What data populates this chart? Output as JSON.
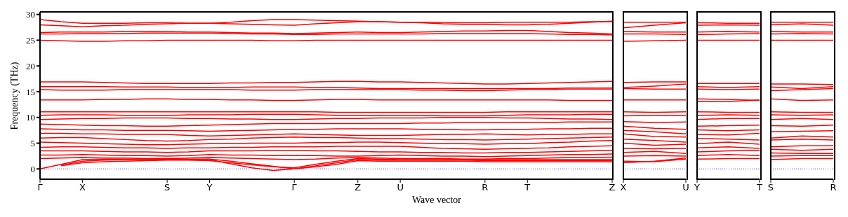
{
  "chart_data": [
    {
      "type": "line",
      "xlabel": "Wave vector",
      "ylabel": "Frequency (THz)",
      "ylim": [
        -2,
        30.5
      ],
      "yticks": [
        0,
        5,
        10,
        15,
        20,
        25,
        30
      ],
      "ref_lines": [
        {
          "axis": "y",
          "value": 0,
          "color": "#0000ff",
          "line_style": "dotted"
        }
      ],
      "categories": [
        "Γ",
        null,
        "X",
        null,
        null,
        null,
        "S",
        null,
        "Y",
        null,
        null,
        null,
        "Γ",
        null,
        null,
        "Z",
        null,
        "U",
        null,
        null,
        null,
        "R",
        null,
        "T",
        null,
        null,
        null,
        "Z"
      ],
      "series": [
        {
          "color": "#ff0000",
          "values": [
            29.0,
            28.6,
            28.3,
            28.3,
            28.3,
            28.4,
            28.4,
            28.3,
            28.3,
            28.5,
            28.8,
            29.0,
            29.0,
            28.9,
            28.8,
            28.7,
            28.6,
            28.5,
            28.4,
            28.2,
            28.1,
            28.1,
            28.0,
            28.0,
            28.1,
            28.3,
            28.5,
            28.7
          ]
        },
        {
          "color": "#ff0000",
          "values": [
            28.0,
            27.8,
            27.6,
            27.8,
            27.9,
            28.1,
            28.2,
            28.3,
            28.3,
            28.2,
            28.1,
            28.0,
            27.9,
            28.2,
            28.4,
            28.6,
            28.6,
            28.5,
            28.5,
            28.4,
            28.4,
            28.4,
            28.5,
            28.5,
            28.5,
            28.5,
            28.6,
            28.6
          ]
        },
        {
          "color": "#ff0000",
          "values": [
            26.5,
            26.6,
            26.6,
            26.6,
            26.7,
            26.7,
            26.7,
            26.6,
            26.6,
            26.5,
            26.4,
            26.4,
            26.3,
            26.4,
            26.5,
            26.6,
            26.5,
            26.5,
            26.6,
            26.7,
            26.8,
            26.8,
            26.9,
            26.9,
            26.7,
            26.5,
            26.4,
            26.2
          ]
        },
        {
          "color": "#ff0000",
          "values": [
            26.2,
            26.2,
            26.3,
            26.3,
            26.3,
            26.4,
            26.4,
            26.4,
            26.4,
            26.3,
            26.2,
            26.2,
            26.1,
            26.1,
            26.2,
            26.2,
            26.2,
            26.2,
            26.2,
            26.3,
            26.3,
            26.3,
            26.3,
            26.3,
            26.2,
            26.1,
            26.1,
            26.0
          ]
        },
        {
          "color": "#ff0000",
          "values": [
            25.0,
            24.9,
            24.8,
            24.8,
            24.9,
            24.9,
            25.0,
            25.0,
            25.0,
            25.0,
            25.0,
            24.9,
            24.9,
            25.0,
            25.0,
            25.0,
            25.0,
            25.0,
            25.0,
            25.0,
            25.0,
            25.0,
            25.0,
            25.0,
            25.0,
            25.0,
            25.0,
            25.0
          ]
        },
        {
          "color": "#ff0000",
          "values": [
            16.9,
            16.9,
            16.9,
            16.8,
            16.7,
            16.6,
            16.6,
            16.6,
            16.6,
            16.7,
            16.7,
            16.8,
            16.8,
            16.9,
            17.0,
            17.0,
            16.9,
            16.9,
            16.8,
            16.7,
            16.6,
            16.5,
            16.5,
            16.6,
            16.7,
            16.8,
            16.9,
            17.0
          ]
        },
        {
          "color": "#ff0000",
          "values": [
            16.0,
            16.0,
            16.0,
            16.0,
            15.9,
            15.9,
            15.9,
            15.8,
            15.8,
            15.8,
            15.9,
            15.9,
            15.9,
            15.8,
            15.8,
            15.7,
            15.6,
            15.6,
            15.6,
            15.6,
            15.6,
            15.6,
            15.6,
            15.6,
            15.6,
            15.7,
            15.7,
            15.7
          ]
        },
        {
          "color": "#ff0000",
          "values": [
            15.4,
            15.3,
            15.3,
            15.3,
            15.4,
            15.4,
            15.4,
            15.4,
            15.4,
            15.4,
            15.3,
            15.3,
            15.3,
            15.4,
            15.4,
            15.4,
            15.4,
            15.4,
            15.3,
            15.3,
            15.2,
            15.2,
            15.3,
            15.4,
            15.4,
            15.5,
            15.5,
            15.5
          ]
        },
        {
          "color": "#ff0000",
          "values": [
            13.4,
            13.4,
            13.4,
            13.5,
            13.5,
            13.6,
            13.6,
            13.5,
            13.5,
            13.4,
            13.4,
            13.3,
            13.3,
            13.4,
            13.5,
            13.5,
            13.4,
            13.4,
            13.4,
            13.4,
            13.4,
            13.4,
            13.4,
            13.4,
            13.4,
            13.3,
            13.3,
            13.3
          ]
        },
        {
          "color": "#ff0000",
          "values": [
            11.1,
            11.1,
            11.1,
            11.1,
            11.1,
            11.1,
            11.1,
            11.1,
            11.1,
            11.1,
            11.1,
            11.1,
            11.1,
            11.1,
            11.0,
            11.0,
            11.0,
            11.0,
            11.0,
            11.0,
            11.0,
            11.0,
            11.1,
            11.1,
            11.1,
            11.1,
            11.1,
            11.1
          ]
        },
        {
          "color": "#ff0000",
          "values": [
            10.4,
            10.5,
            10.5,
            10.5,
            10.4,
            10.4,
            10.4,
            10.5,
            10.5,
            10.5,
            10.6,
            10.6,
            10.6,
            10.5,
            10.4,
            10.4,
            10.4,
            10.4,
            10.4,
            10.3,
            10.3,
            10.3,
            10.4,
            10.5,
            10.5,
            10.5,
            10.6,
            10.6
          ]
        },
        {
          "color": "#ff0000",
          "values": [
            9.6,
            9.7,
            9.8,
            9.8,
            9.9,
            9.9,
            9.9,
            9.8,
            9.8,
            9.7,
            9.7,
            9.6,
            9.6,
            9.7,
            9.8,
            9.8,
            9.9,
            9.9,
            9.9,
            10.0,
            10.0,
            10.0,
            9.9,
            9.9,
            9.8,
            9.7,
            9.7,
            9.6
          ]
        },
        {
          "color": "#ff0000",
          "values": [
            8.7,
            8.6,
            8.5,
            8.4,
            8.4,
            8.3,
            8.3,
            8.4,
            8.5,
            8.6,
            8.7,
            8.8,
            8.8,
            8.8,
            8.8,
            8.8,
            8.8,
            8.8,
            8.9,
            8.9,
            9.0,
            9.0,
            9.0,
            9.0,
            9.0,
            9.1,
            9.1,
            9.1
          ]
        },
        {
          "color": "#ff0000",
          "values": [
            7.8,
            7.7,
            7.6,
            7.6,
            7.5,
            7.5,
            7.5,
            7.4,
            7.3,
            7.4,
            7.5,
            7.6,
            7.7,
            7.7,
            7.8,
            7.8,
            7.8,
            7.8,
            7.7,
            7.7,
            7.6,
            7.6,
            7.7,
            7.7,
            7.8,
            7.8,
            7.9,
            7.9
          ]
        },
        {
          "color": "#ff0000",
          "values": [
            6.9,
            6.9,
            6.8,
            6.8,
            6.7,
            6.7,
            6.7,
            6.5,
            6.4,
            6.5,
            6.6,
            6.7,
            6.8,
            6.7,
            6.6,
            6.5,
            6.5,
            6.5,
            6.6,
            6.7,
            6.7,
            6.8,
            6.7,
            6.6,
            6.7,
            6.7,
            6.8,
            6.8
          ]
        },
        {
          "color": "#ff0000",
          "values": [
            6.0,
            6.1,
            6.1,
            5.9,
            5.7,
            5.5,
            5.4,
            5.5,
            5.7,
            5.8,
            6.0,
            6.1,
            6.2,
            6.1,
            6.1,
            6.0,
            5.9,
            5.9,
            5.8,
            5.7,
            5.7,
            5.6,
            5.7,
            5.8,
            5.9,
            6.0,
            6.1,
            6.2
          ]
        },
        {
          "color": "#ff0000",
          "values": [
            5.2,
            5.1,
            5.0,
            4.9,
            4.8,
            4.7,
            4.7,
            4.8,
            4.9,
            4.9,
            5.0,
            5.0,
            5.0,
            5.1,
            5.1,
            5.2,
            5.2,
            5.1,
            5.0,
            4.9,
            4.9,
            4.8,
            4.9,
            4.9,
            5.1,
            5.2,
            5.4,
            5.5
          ]
        },
        {
          "color": "#ff0000",
          "values": [
            4.2,
            4.3,
            4.3,
            4.2,
            4.1,
            4.1,
            4.0,
            4.1,
            4.1,
            4.2,
            4.2,
            4.3,
            4.3,
            4.3,
            4.4,
            4.4,
            4.4,
            4.4,
            4.2,
            4.0,
            3.9,
            3.8,
            3.9,
            4.0,
            4.1,
            4.3,
            4.4,
            4.5
          ]
        },
        {
          "color": "#ff0000",
          "values": [
            3.5,
            3.5,
            3.5,
            3.4,
            3.3,
            3.3,
            3.2,
            3.3,
            3.5,
            3.5,
            3.5,
            3.6,
            3.6,
            3.5,
            3.5,
            3.4,
            3.3,
            3.3,
            3.2,
            3.2,
            3.1,
            3.1,
            3.2,
            3.2,
            3.3,
            3.4,
            3.5,
            3.6
          ]
        },
        {
          "color": "#ff0000",
          "values": [
            2.7,
            2.7,
            2.8,
            2.7,
            2.6,
            2.6,
            2.5,
            2.6,
            2.8,
            2.7,
            2.7,
            2.6,
            2.6,
            2.6,
            2.5,
            2.5,
            2.6,
            2.7,
            2.6,
            2.5,
            2.5,
            2.4,
            2.5,
            2.6,
            2.7,
            2.8,
            2.8,
            2.9
          ]
        },
        {
          "color": "#ff0000",
          "values": [
            2.0,
            2.1,
            2.2,
            2.1,
            2.1,
            2.0,
            2.0,
            2.1,
            2.2,
            2.1,
            2.0,
            1.9,
            1.8,
            1.9,
            2.1,
            2.2,
            2.1,
            2.0,
            2.0,
            2.0,
            1.9,
            1.9,
            2.0,
            2.0,
            2.1,
            2.2,
            2.2,
            2.3
          ]
        },
        {
          "color": "#ff0000",
          "values": [
            0,
            0.9,
            1.8,
            1.9,
            1.9,
            1.9,
            1.9,
            1.9,
            1.9,
            1.5,
            1.0,
            0.5,
            0,
            0.6,
            1.2,
            1.8,
            1.7,
            1.7,
            1.7,
            1.7,
            1.7,
            1.6,
            1.6,
            1.6,
            1.6,
            1.6,
            1.6,
            1.6
          ]
        },
        {
          "color": "#ff0000",
          "values": [
            null,
            0.6,
            1.2,
            1.4,
            1.5,
            1.6,
            1.7,
            1.7,
            1.6,
            1.2,
            0.8,
            0.4,
            0.2,
            0.9,
            1.5,
            2.0,
            1.9,
            1.8,
            1.8,
            1.8,
            1.8,
            1.8,
            1.8,
            1.8,
            1.8,
            1.8,
            1.8,
            1.8
          ]
        },
        {
          "color": "#ff0000",
          "values": [
            null,
            0.7,
            1.5,
            1.7,
            1.8,
            1.8,
            1.8,
            1.8,
            1.8,
            1.0,
            0.2,
            -0.3,
            0,
            0.4,
            0.9,
            1.6,
            1.5,
            1.5,
            1.5,
            1.5,
            1.5,
            1.4,
            1.4,
            1.4,
            1.4,
            1.4,
            1.4,
            1.4
          ]
        }
      ]
    },
    {
      "type": "line",
      "tick_labels": "x",
      "ylim": [
        -2,
        30.5
      ],
      "yticks": [
        0,
        5,
        10,
        15,
        20,
        25,
        30
      ],
      "ref_lines": [
        {
          "axis": "y",
          "value": 0,
          "color": "#0000ff",
          "line_style": "dotted"
        }
      ],
      "categories": [
        "X",
        null,
        "U"
      ],
      "series": [
        {
          "color": "#ff0000",
          "values": [
            28.5,
            28.5,
            28.5
          ]
        },
        {
          "color": "#ff0000",
          "values": [
            27.4,
            27.9,
            28.4
          ]
        },
        {
          "color": "#ff0000",
          "values": [
            26.7,
            26.6,
            26.6
          ]
        },
        {
          "color": "#ff0000",
          "values": [
            26.2,
            26.2,
            26.1
          ]
        },
        {
          "color": "#ff0000",
          "values": [
            24.8,
            24.9,
            25.0
          ]
        },
        {
          "color": "#ff0000",
          "values": [
            16.8,
            16.9,
            16.9
          ]
        },
        {
          "color": "#ff0000",
          "values": [
            15.8,
            16.1,
            16.5
          ]
        },
        {
          "color": "#ff0000",
          "values": [
            15.6,
            15.5,
            15.5
          ]
        },
        {
          "color": "#ff0000",
          "values": [
            13.4,
            13.4,
            13.4
          ]
        },
        {
          "color": "#ff0000",
          "values": [
            11.1,
            11.0,
            11.1
          ]
        },
        {
          "color": "#ff0000",
          "values": [
            10.3,
            10.4,
            10.4
          ]
        },
        {
          "color": "#ff0000",
          "values": [
            9.2,
            9.0,
            9.1
          ]
        },
        {
          "color": "#ff0000",
          "values": [
            8.3,
            7.9,
            7.7
          ]
        },
        {
          "color": "#ff0000",
          "values": [
            7.5,
            7.2,
            6.8
          ]
        },
        {
          "color": "#ff0000",
          "values": [
            6.8,
            6.3,
            6.2
          ]
        },
        {
          "color": "#ff0000",
          "values": [
            5.8,
            5.5,
            5.2
          ]
        },
        {
          "color": "#ff0000",
          "values": [
            5.0,
            4.6,
            4.8
          ]
        },
        {
          "color": "#ff0000",
          "values": [
            4.0,
            3.9,
            4.0
          ]
        },
        {
          "color": "#ff0000",
          "values": [
            3.2,
            3.4,
            3.0
          ]
        },
        {
          "color": "#ff0000",
          "values": [
            2.5,
            2.6,
            2.5
          ]
        },
        {
          "color": "#ff0000",
          "values": [
            1.5,
            1.4,
            1.9
          ]
        },
        {
          "color": "#ff0000",
          "values": [
            1.2,
            1.5,
            2.1
          ]
        }
      ]
    },
    {
      "type": "line",
      "tick_labels": "x",
      "ylim": [
        -2,
        30.5
      ],
      "yticks": [
        0,
        5,
        10,
        15,
        20,
        25,
        30
      ],
      "ref_lines": [
        {
          "axis": "y",
          "value": 0,
          "color": "#0000ff",
          "line_style": "dotted"
        }
      ],
      "categories": [
        "Y",
        null,
        "T"
      ],
      "series": [
        {
          "color": "#ff0000",
          "values": [
            28.4,
            28.3,
            28.3
          ]
        },
        {
          "color": "#ff0000",
          "values": [
            27.9,
            28.0,
            27.9
          ]
        },
        {
          "color": "#ff0000",
          "values": [
            26.6,
            26.7,
            26.6
          ]
        },
        {
          "color": "#ff0000",
          "values": [
            26.1,
            26.2,
            26.3
          ]
        },
        {
          "color": "#ff0000",
          "values": [
            25.0,
            25.0,
            25.0
          ]
        },
        {
          "color": "#ff0000",
          "values": [
            16.6,
            16.6,
            16.6
          ]
        },
        {
          "color": "#ff0000",
          "values": [
            16.0,
            15.8,
            16.0
          ]
        },
        {
          "color": "#ff0000",
          "values": [
            15.5,
            15.4,
            15.5
          ]
        },
        {
          "color": "#ff0000",
          "values": [
            13.6,
            13.5,
            13.3
          ]
        },
        {
          "color": "#ff0000",
          "values": [
            13.1,
            13.1,
            13.4
          ]
        },
        {
          "color": "#ff0000",
          "values": [
            11.1,
            11.0,
            11.0
          ]
        },
        {
          "color": "#ff0000",
          "values": [
            10.4,
            10.5,
            10.4
          ]
        },
        {
          "color": "#ff0000",
          "values": [
            9.6,
            9.8,
            9.8
          ]
        },
        {
          "color": "#ff0000",
          "values": [
            8.3,
            8.4,
            8.5
          ]
        },
        {
          "color": "#ff0000",
          "values": [
            7.6,
            7.4,
            7.6
          ]
        },
        {
          "color": "#ff0000",
          "values": [
            6.7,
            6.6,
            6.9
          ]
        },
        {
          "color": "#ff0000",
          "values": [
            5.9,
            5.8,
            5.6
          ]
        },
        {
          "color": "#ff0000",
          "values": [
            4.9,
            5.2,
            4.8
          ]
        },
        {
          "color": "#ff0000",
          "values": [
            4.1,
            4.3,
            4.0
          ]
        },
        {
          "color": "#ff0000",
          "values": [
            3.3,
            3.5,
            3.6
          ]
        },
        {
          "color": "#ff0000",
          "values": [
            2.6,
            2.8,
            2.6
          ]
        },
        {
          "color": "#ff0000",
          "values": [
            1.9,
            2.0,
            2.0
          ]
        }
      ]
    },
    {
      "type": "line",
      "tick_labels": "x",
      "ylim": [
        -2,
        30.5
      ],
      "yticks": [
        0,
        5,
        10,
        15,
        20,
        25,
        30
      ],
      "ref_lines": [
        {
          "axis": "y",
          "value": 0,
          "color": "#0000ff",
          "line_style": "dotted"
        }
      ],
      "categories": [
        "S",
        null,
        "R"
      ],
      "series": [
        {
          "color": "#ff0000",
          "values": [
            28.5,
            28.5,
            28.5
          ]
        },
        {
          "color": "#ff0000",
          "values": [
            28.0,
            28.2,
            27.9
          ]
        },
        {
          "color": "#ff0000",
          "values": [
            26.7,
            26.6,
            26.6
          ]
        },
        {
          "color": "#ff0000",
          "values": [
            26.2,
            26.3,
            26.2
          ]
        },
        {
          "color": "#ff0000",
          "values": [
            25.0,
            25.0,
            25.0
          ]
        },
        {
          "color": "#ff0000",
          "values": [
            16.5,
            16.5,
            16.4
          ]
        },
        {
          "color": "#ff0000",
          "values": [
            15.9,
            15.6,
            16.0
          ]
        },
        {
          "color": "#ff0000",
          "values": [
            15.2,
            15.4,
            15.6
          ]
        },
        {
          "color": "#ff0000",
          "values": [
            13.6,
            13.3,
            13.4
          ]
        },
        {
          "color": "#ff0000",
          "values": [
            11.1,
            11.0,
            11.0
          ]
        },
        {
          "color": "#ff0000",
          "values": [
            10.5,
            10.4,
            10.5
          ]
        },
        {
          "color": "#ff0000",
          "values": [
            9.6,
            9.8,
            9.6
          ]
        },
        {
          "color": "#ff0000",
          "values": [
            8.4,
            8.3,
            8.5
          ]
        },
        {
          "color": "#ff0000",
          "values": [
            7.2,
            7.3,
            7.4
          ]
        },
        {
          "color": "#ff0000",
          "values": [
            6.0,
            6.4,
            6.2
          ]
        },
        {
          "color": "#ff0000",
          "values": [
            5.6,
            5.8,
            5.6
          ]
        },
        {
          "color": "#ff0000",
          "values": [
            4.3,
            4.5,
            4.5
          ]
        },
        {
          "color": "#ff0000",
          "values": [
            3.8,
            3.6,
            3.8
          ]
        },
        {
          "color": "#ff0000",
          "values": [
            3.1,
            3.0,
            3.0
          ]
        },
        {
          "color": "#ff0000",
          "values": [
            2.5,
            2.6,
            2.6
          ]
        },
        {
          "color": "#ff0000",
          "values": [
            1.8,
            2.0,
            2.0
          ]
        }
      ]
    }
  ]
}
